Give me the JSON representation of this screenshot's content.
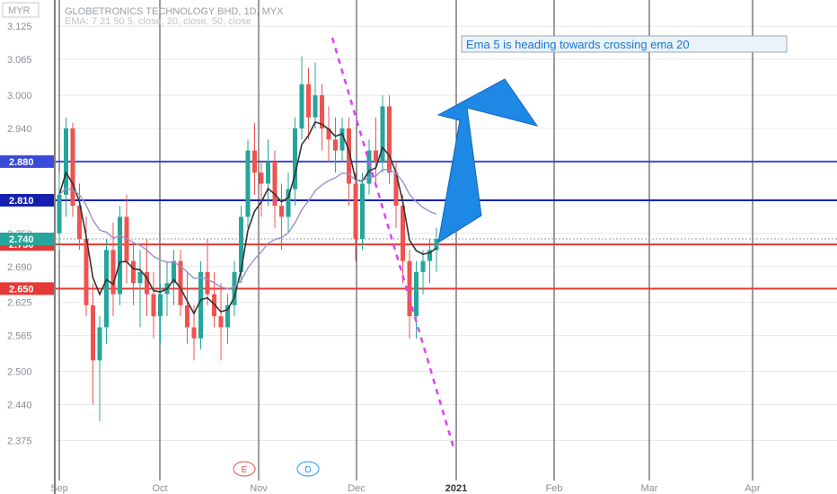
{
  "chart_data": {
    "type": "candlestick",
    "title": "GLOBETRONICS TECHNOLOGY BHD, 1D, MYX",
    "indicator_label": "EMA: 7 21 50 5, close, 20, close, 50, close",
    "currency_label": "MYR",
    "y_ticks": [
      "3.125",
      "3.065",
      "3.000",
      "2.940",
      "2.880",
      "2.810",
      "2.750",
      "2.690",
      "2.625",
      "2.565",
      "2.500",
      "2.440",
      "2.375"
    ],
    "ylim": [
      2.34,
      3.14
    ],
    "x_ticks": [
      "Sep",
      "Oct",
      "Nov",
      "Dec",
      "2021",
      "Feb",
      "Mar",
      "Apr"
    ],
    "grid": true,
    "colors": {
      "up": "#26a69a",
      "down": "#ef5350",
      "ema5": "#333333",
      "ema20": "#9c8fd0",
      "blue_line": "#1520b0",
      "red_line": "#e53935"
    },
    "horizontal_lines": [
      {
        "value": 2.88,
        "label": "2.880",
        "color": "#3a4bd8"
      },
      {
        "value": 2.81,
        "label": "2.810",
        "color": "#1520b0"
      },
      {
        "value": 2.73,
        "label": "2.730",
        "color": "#e53935"
      },
      {
        "value": 2.65,
        "label": "2.650",
        "color": "#e53935"
      }
    ],
    "last_price": {
      "value": 2.74,
      "label": "2.740",
      "color": "#26a69a"
    },
    "events": [
      {
        "label": "E",
        "x": "Nov"
      },
      {
        "label": "D",
        "x": "Nov"
      }
    ],
    "annotation": "Ema 5 is heading towards crossing ema 20",
    "candles": [
      [
        2.75,
        2.86,
        2.72,
        2.82
      ],
      [
        2.82,
        2.96,
        2.78,
        2.94
      ],
      [
        2.94,
        2.95,
        2.78,
        2.8
      ],
      [
        2.8,
        2.84,
        2.72,
        2.74
      ],
      [
        2.74,
        2.78,
        2.6,
        2.62
      ],
      [
        2.62,
        2.66,
        2.44,
        2.52
      ],
      [
        2.52,
        2.6,
        2.41,
        2.58
      ],
      [
        2.58,
        2.74,
        2.55,
        2.72
      ],
      [
        2.72,
        2.77,
        2.6,
        2.64
      ],
      [
        2.64,
        2.8,
        2.62,
        2.78
      ],
      [
        2.78,
        2.82,
        2.66,
        2.7
      ],
      [
        2.7,
        2.73,
        2.62,
        2.66
      ],
      [
        2.66,
        2.72,
        2.58,
        2.68
      ],
      [
        2.68,
        2.74,
        2.6,
        2.64
      ],
      [
        2.64,
        2.68,
        2.56,
        2.6
      ],
      [
        2.6,
        2.66,
        2.55,
        2.64
      ],
      [
        2.64,
        2.7,
        2.6,
        2.66
      ],
      [
        2.66,
        2.72,
        2.62,
        2.7
      ],
      [
        2.7,
        2.72,
        2.6,
        2.62
      ],
      [
        2.62,
        2.68,
        2.55,
        2.58
      ],
      [
        2.58,
        2.62,
        2.52,
        2.56
      ],
      [
        2.56,
        2.7,
        2.54,
        2.68
      ],
      [
        2.68,
        2.74,
        2.62,
        2.64
      ],
      [
        2.64,
        2.68,
        2.58,
        2.6
      ],
      [
        2.6,
        2.66,
        2.52,
        2.58
      ],
      [
        2.58,
        2.64,
        2.55,
        2.62
      ],
      [
        2.62,
        2.7,
        2.6,
        2.68
      ],
      [
        2.68,
        2.8,
        2.66,
        2.78
      ],
      [
        2.78,
        2.92,
        2.76,
        2.9
      ],
      [
        2.9,
        2.95,
        2.82,
        2.86
      ],
      [
        2.86,
        2.88,
        2.78,
        2.84
      ],
      [
        2.84,
        2.92,
        2.8,
        2.88
      ],
      [
        2.88,
        2.9,
        2.76,
        2.8
      ],
      [
        2.8,
        2.84,
        2.72,
        2.78
      ],
      [
        2.78,
        2.86,
        2.75,
        2.83
      ],
      [
        2.83,
        2.96,
        2.8,
        2.94
      ],
      [
        2.94,
        3.07,
        2.92,
        3.02
      ],
      [
        3.02,
        3.05,
        2.92,
        2.96
      ],
      [
        2.96,
        3.06,
        2.94,
        3.0
      ],
      [
        3.0,
        3.02,
        2.9,
        2.94
      ],
      [
        2.94,
        2.98,
        2.88,
        2.92
      ],
      [
        2.92,
        2.96,
        2.86,
        2.9
      ],
      [
        2.9,
        2.96,
        2.88,
        2.94
      ],
      [
        2.94,
        2.96,
        2.8,
        2.84
      ],
      [
        2.84,
        2.86,
        2.7,
        2.74
      ],
      [
        2.74,
        2.86,
        2.72,
        2.84
      ],
      [
        2.84,
        2.92,
        2.82,
        2.9
      ],
      [
        2.9,
        2.96,
        2.84,
        2.88
      ],
      [
        2.88,
        3.0,
        2.86,
        2.98
      ],
      [
        2.98,
        3.0,
        2.84,
        2.86
      ],
      [
        2.86,
        2.88,
        2.76,
        2.8
      ],
      [
        2.8,
        2.82,
        2.66,
        2.7
      ],
      [
        2.7,
        2.72,
        2.56,
        2.6
      ],
      [
        2.6,
        2.7,
        2.56,
        2.68
      ],
      [
        2.68,
        2.72,
        2.64,
        2.7
      ],
      [
        2.7,
        2.74,
        2.66,
        2.72
      ],
      [
        2.72,
        2.76,
        2.68,
        2.74
      ]
    ]
  }
}
